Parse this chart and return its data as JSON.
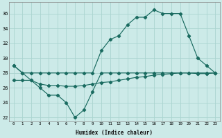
{
  "xlabel": "Humidex (Indice chaleur)",
  "bg_color": "#cceae8",
  "grid_color": "#aad4d0",
  "line_color": "#1a6b60",
  "x_ticks": [
    0,
    1,
    2,
    3,
    4,
    5,
    6,
    7,
    8,
    9,
    10,
    11,
    12,
    13,
    14,
    15,
    16,
    17,
    18,
    19,
    20,
    21,
    22,
    23
  ],
  "xlim": [
    -0.5,
    23.5
  ],
  "ylim": [
    21.5,
    37.5
  ],
  "y_ticks": [
    22,
    24,
    26,
    28,
    30,
    32,
    34,
    36
  ],
  "series_zigzag": [
    29,
    28,
    27,
    26,
    25,
    25,
    24,
    22,
    23,
    25.5,
    28,
    28,
    28,
    28,
    28,
    28,
    28,
    28,
    28,
    28,
    28,
    28,
    28,
    28
  ],
  "series_rise": [
    29,
    28,
    28,
    28,
    28,
    28,
    28,
    28,
    28,
    28,
    31,
    32.5,
    33,
    34.5,
    35.5,
    35.5,
    36.5,
    36,
    36,
    36,
    33,
    30,
    29,
    28
  ],
  "series_flat": [
    27,
    27,
    27,
    26.5,
    26.3,
    26.3,
    26.2,
    26.2,
    26.3,
    26.5,
    26.7,
    26.8,
    27.0,
    27.2,
    27.4,
    27.5,
    27.7,
    27.8,
    27.9,
    28.0,
    28.0,
    27.9,
    27.9,
    28.0
  ]
}
